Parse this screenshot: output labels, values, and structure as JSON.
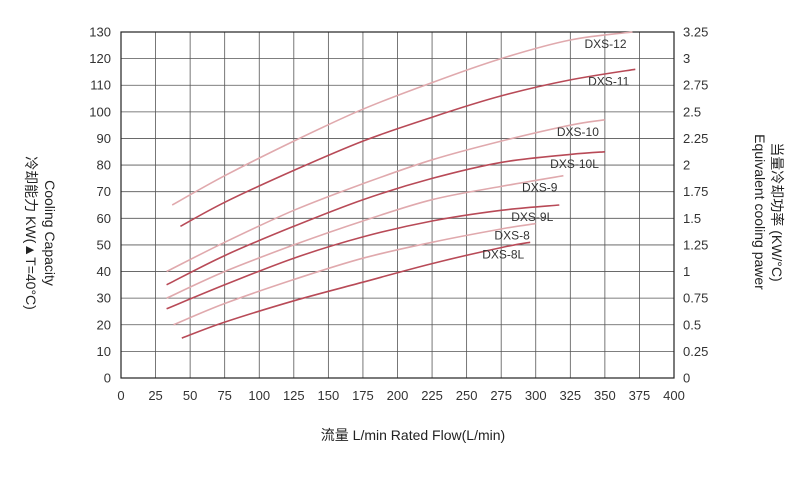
{
  "chart_data": {
    "type": "line",
    "title": "",
    "xlabel": "流量 L/min  Rated Flow(L/min)",
    "ylabel_left_line1": "冷却能力 KW(▲T=40°C)",
    "ylabel_left_line2": "Cooling Capacity",
    "ylabel_right_line1": "Equivalent cooling pawer",
    "ylabel_right_line2": "当量冷却功率 (KW/°C)",
    "xlim": [
      0,
      400
    ],
    "ylim": [
      0,
      130
    ],
    "ylim_right": [
      0,
      3.25
    ],
    "grid": true,
    "x_ticks": [
      "0",
      "25",
      "50",
      "75",
      "100",
      "125",
      "150",
      "175",
      "200",
      "225",
      "250",
      "275",
      "300",
      "325",
      "350",
      "375",
      "400"
    ],
    "y_ticks": [
      "0",
      "10",
      "20",
      "30",
      "40",
      "50",
      "60",
      "70",
      "80",
      "90",
      "100",
      "110",
      "120",
      "130"
    ],
    "y_right_ticks": [
      "0",
      "0.25",
      "0.5",
      "0.75",
      "1",
      "1.25",
      "1.5",
      "1.75",
      "2",
      "2.25",
      "2.5",
      "2.75",
      "3",
      "3.25"
    ],
    "series": [
      {
        "name": "DXS-12",
        "color": "#e0a9ad",
        "x": [
          37,
          75,
          125,
          175,
          225,
          275,
          325,
          370
        ],
        "y": [
          65,
          76,
          89,
          101,
          111,
          120,
          127,
          130
        ]
      },
      {
        "name": "DXS-11",
        "color": "#b84a57",
        "x": [
          43,
          75,
          125,
          175,
          225,
          275,
          325,
          372
        ],
        "y": [
          57,
          66,
          78,
          89,
          98,
          106,
          112,
          116
        ]
      },
      {
        "name": "DXS-10",
        "color": "#e0a9ad",
        "x": [
          33,
          75,
          125,
          175,
          225,
          275,
          325,
          350
        ],
        "y": [
          40,
          51,
          63,
          73,
          82,
          89,
          95,
          97
        ]
      },
      {
        "name": "DXS-10L",
        "color": "#b84a57",
        "x": [
          33,
          75,
          125,
          175,
          225,
          275,
          325,
          350
        ],
        "y": [
          35,
          46,
          57,
          67,
          75,
          81,
          84,
          85
        ]
      },
      {
        "name": "DXS-9",
        "color": "#e0a9ad",
        "x": [
          33,
          75,
          125,
          175,
          225,
          275,
          320
        ],
        "y": [
          30,
          40,
          50,
          59,
          67,
          72,
          76
        ]
      },
      {
        "name": "DXS-9L",
        "color": "#b84a57",
        "x": [
          33,
          75,
          125,
          175,
          225,
          275,
          317
        ],
        "y": [
          26,
          35,
          45,
          53,
          59,
          63,
          65
        ]
      },
      {
        "name": "DXS-8",
        "color": "#e0a9ad",
        "x": [
          38,
          75,
          125,
          175,
          225,
          275,
          300
        ],
        "y": [
          20,
          28,
          37,
          45,
          51,
          56,
          58
        ]
      },
      {
        "name": "DXS-8L",
        "color": "#b84a57",
        "x": [
          44,
          75,
          125,
          175,
          225,
          275,
          296
        ],
        "y": [
          15,
          21,
          29,
          36,
          43,
          49,
          51
        ]
      }
    ],
    "series_label_text": [
      "DXS-12",
      "DXS-11",
      "DXS-10",
      "DXS-10L",
      "DXS-9",
      "DXS-9L",
      "DXS-8",
      "DXS-8L"
    ]
  }
}
